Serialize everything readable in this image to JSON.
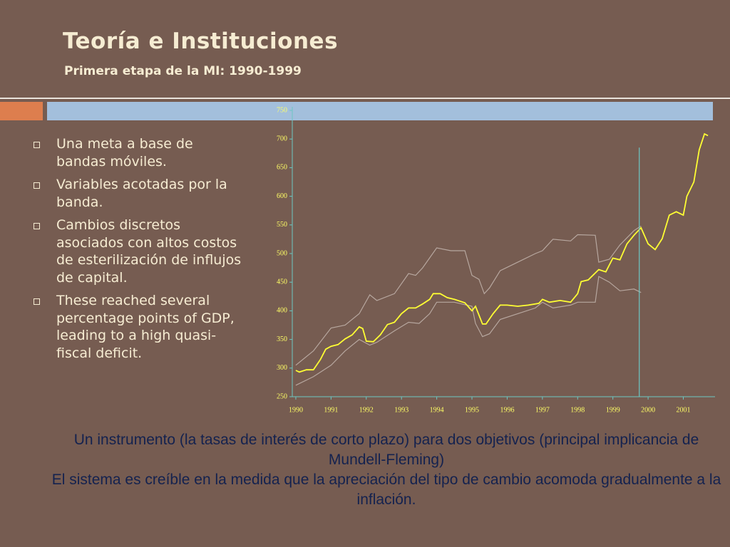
{
  "header": {
    "title": "Teoría e Instituciones",
    "subtitle": "Primera etapa de la MI: 1990-1999"
  },
  "bullets": [
    "Una meta a base de bandas móviles.",
    "Variables acotadas por la banda.",
    "Cambios discretos asociados con altos costos de esterilización de influjos de capital.",
    "These reached several percentage points of GDP, leading to a high quasi-fiscal deficit."
  ],
  "chart_data": {
    "type": "line",
    "xlim": [
      1989.9,
      2001.9
    ],
    "xticks": [
      1990,
      1991,
      1992,
      1993,
      1994,
      1995,
      1996,
      1997,
      1998,
      1999,
      2000,
      2001
    ],
    "ylim": [
      250,
      750
    ],
    "yticks": [
      250,
      300,
      350,
      400,
      450,
      500,
      550,
      600,
      650,
      700,
      750
    ],
    "vline": 1999.75,
    "vline_color": "#6cc7c4",
    "series": [
      {
        "color": "#ffff33",
        "x": [
          1990.0,
          1990.1,
          1990.3,
          1990.5,
          1990.7,
          1990.85,
          1991.0,
          1991.2,
          1991.4,
          1991.6,
          1991.8,
          1991.9,
          1992.0,
          1992.2,
          1992.4,
          1992.6,
          1992.8,
          1993.0,
          1993.2,
          1993.4,
          1993.6,
          1993.8,
          1993.9,
          1994.1,
          1994.3,
          1994.5,
          1994.8,
          1995.0,
          1995.1,
          1995.3,
          1995.4,
          1995.6,
          1995.8,
          1996.0,
          1996.3,
          1996.6,
          1996.9,
          1997.0,
          1997.2,
          1997.5,
          1997.8,
          1998.0,
          1998.1,
          1998.3,
          1998.6,
          1998.8,
          1999.0,
          1999.2,
          1999.4,
          1999.6,
          1999.8,
          2000.0,
          2000.2,
          2000.4,
          2000.6,
          2000.8,
          2001.0,
          2001.1,
          2001.3,
          2001.45,
          2001.6,
          2001.7
        ],
        "values": [
          296,
          293,
          297,
          297,
          315,
          333,
          338,
          341,
          351,
          358,
          372,
          369,
          347,
          346,
          358,
          376,
          380,
          395,
          405,
          405,
          412,
          420,
          430,
          430,
          423,
          420,
          414,
          400,
          408,
          377,
          377,
          395,
          410,
          410,
          408,
          410,
          413,
          420,
          415,
          418,
          415,
          430,
          451,
          454,
          472,
          468,
          492,
          489,
          517,
          532,
          545,
          517,
          507,
          526,
          567,
          573,
          567,
          600,
          625,
          681,
          709,
          706
        ]
      },
      {
        "color": "#b7a79f",
        "x": [
          1990.0,
          1990.5,
          1991.0,
          1991.4,
          1991.8,
          1992.1,
          1992.3,
          1992.8,
          1993.2,
          1993.4,
          1993.6,
          1994.0,
          1994.4,
          1994.8,
          1995.0,
          1995.2,
          1995.35,
          1995.5,
          1995.8,
          1996.3,
          1996.8,
          1997.0,
          1997.3,
          1997.8,
          1998.0,
          1998.5,
          1998.6,
          1998.9,
          1999.2,
          1999.6,
          1999.8
        ],
        "values": [
          305,
          330,
          370,
          375,
          395,
          428,
          418,
          430,
          465,
          462,
          475,
          510,
          505,
          505,
          462,
          455,
          430,
          440,
          470,
          485,
          500,
          505,
          525,
          522,
          533,
          532,
          485,
          490,
          515,
          540,
          548
        ]
      },
      {
        "color": "#b7a79f",
        "x": [
          1990.0,
          1990.5,
          1991.0,
          1991.4,
          1991.8,
          1992.1,
          1992.3,
          1992.8,
          1993.2,
          1993.5,
          1993.8,
          1994.0,
          1994.5,
          1995.0,
          1995.1,
          1995.3,
          1995.5,
          1995.8,
          1996.3,
          1996.8,
          1997.0,
          1997.3,
          1997.8,
          1998.0,
          1998.5,
          1998.6,
          1998.9,
          1999.2,
          1999.6,
          1999.8
        ],
        "values": [
          270,
          285,
          305,
          330,
          350,
          340,
          345,
          365,
          380,
          378,
          395,
          415,
          415,
          408,
          378,
          355,
          360,
          385,
          395,
          405,
          415,
          405,
          410,
          415,
          415,
          460,
          450,
          435,
          438,
          432
        ]
      }
    ]
  },
  "footer": [
    "Un instrumento (la tasas de interés de corto plazo) para dos objetivos (principal implicancia de  Mundell-Fleming)",
    "El sistema es creíble en la medida que la apreciación del tipo de cambio acomoda gradualmente a la inflación."
  ]
}
